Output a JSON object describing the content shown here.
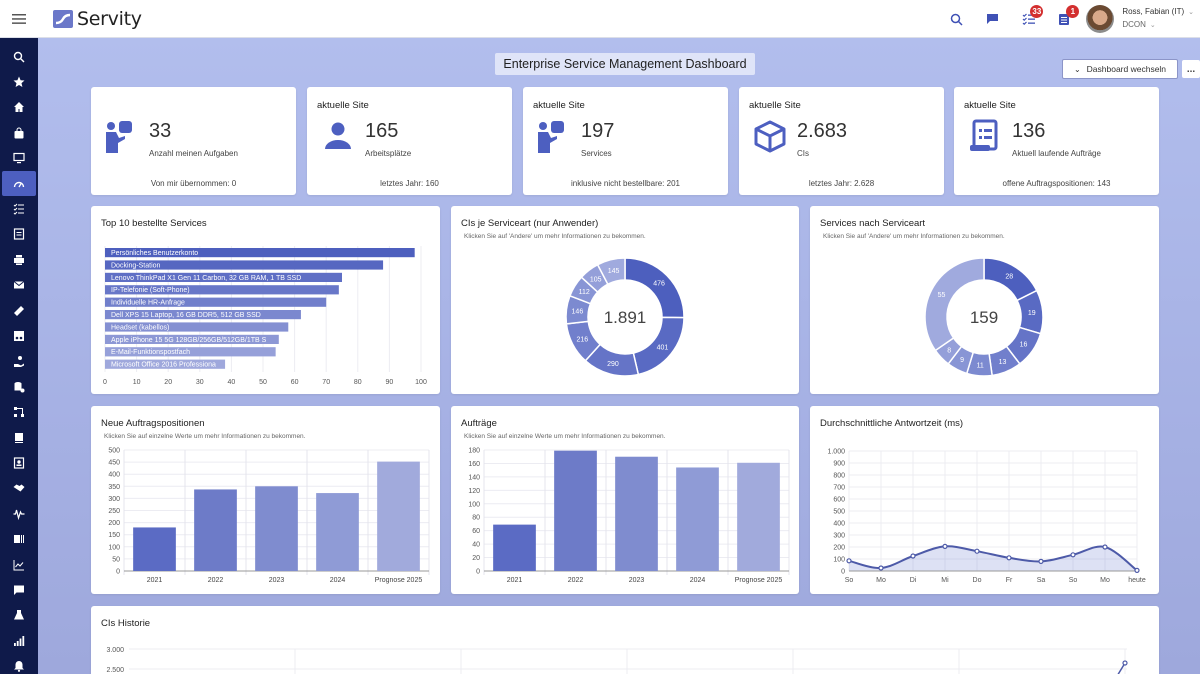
{
  "app": {
    "name": "Servity",
    "menu_icon": "hamburger-icon"
  },
  "topbar": {
    "icons": [
      {
        "name": "search-icon"
      },
      {
        "name": "chat-icon"
      },
      {
        "name": "tasks-icon",
        "badge": "33"
      },
      {
        "name": "orders-icon",
        "badge": "1"
      }
    ],
    "user": {
      "name": "Ross, Fabian (IT)",
      "org": "DCON"
    }
  },
  "sidebar": {
    "items": [
      {
        "name": "search",
        "icon": "search-icon"
      },
      {
        "name": "favorites",
        "icon": "star-icon"
      },
      {
        "name": "home",
        "icon": "home-icon"
      },
      {
        "name": "shop",
        "icon": "shopping-bag-icon"
      },
      {
        "name": "monitor",
        "icon": "monitor-icon"
      },
      {
        "name": "dashboard",
        "icon": "gauge-icon",
        "active": true
      },
      {
        "name": "tasks",
        "icon": "checklist-icon"
      },
      {
        "name": "orders",
        "icon": "list-document-icon"
      },
      {
        "name": "printer",
        "icon": "printer-icon"
      },
      {
        "name": "mail",
        "icon": "mail-icon"
      },
      {
        "name": "tickets",
        "icon": "ticket-icon"
      },
      {
        "name": "assets",
        "icon": "asset-card-icon"
      },
      {
        "name": "support",
        "icon": "hand-support-icon"
      },
      {
        "name": "database",
        "icon": "database-icon"
      },
      {
        "name": "workflow",
        "icon": "workflow-icon"
      },
      {
        "name": "catalog",
        "icon": "book-icon"
      },
      {
        "name": "contacts",
        "icon": "contact-icon"
      },
      {
        "name": "contracts",
        "icon": "handshake-icon"
      },
      {
        "name": "monitoring",
        "icon": "pulse-icon"
      },
      {
        "name": "inventory",
        "icon": "barcode-icon"
      },
      {
        "name": "reports",
        "icon": "line-chart-icon"
      },
      {
        "name": "messages",
        "icon": "message-icon"
      },
      {
        "name": "lab",
        "icon": "flask-icon"
      },
      {
        "name": "statistics",
        "icon": "signal-icon"
      },
      {
        "name": "notifications",
        "icon": "bell-icon"
      }
    ]
  },
  "header": {
    "title": "Enterprise Service Management Dashboard",
    "switch_label": "Dashboard wechseln",
    "more_label": "..."
  },
  "kpis": [
    {
      "site": "",
      "value": "33",
      "label": "Anzahl meinen Aufgaben",
      "footer": "Von mir übernommen: 0",
      "icon": "person-presenting-icon"
    },
    {
      "site": "aktuelle Site",
      "value": "165",
      "label": "Arbeitsplätze",
      "footer": "letztes Jahr: 160",
      "icon": "person-icon"
    },
    {
      "site": "aktuelle Site",
      "value": "197",
      "label": "Services",
      "footer": "inklusive nicht bestellbare: 201",
      "icon": "person-presenting-icon"
    },
    {
      "site": "aktuelle Site",
      "value": "2.683",
      "label": "CIs",
      "footer": "letztes Jahr: 2.628",
      "icon": "cube-icon"
    },
    {
      "site": "aktuelle Site",
      "value": "136",
      "label": "Aktuell laufende Aufträge",
      "footer": "offene Auftragspositionen: 143",
      "icon": "order-list-icon"
    }
  ],
  "colors": {
    "accent": "#4d5fc0",
    "sidebar": "#0f1a4a",
    "badge": "#d32f2f"
  },
  "chart_data": [
    {
      "id": "top10",
      "type": "bar",
      "orientation": "horizontal",
      "title": "Top 10 bestellte Services",
      "categories": [
        "Persönliches Benutzerkonto",
        "Docking-Station",
        "Lenovo ThinkPad X1 Gen 11 Carbon, 32 GB RAM, 1 TB SSD",
        "IP-Telefonie (Soft-Phone)",
        "Individuelle HR-Anfrage",
        "Dell XPS 15 Laptop, 16 GB DDR5, 512 GB SSD",
        "Headset (kabellos)",
        "Apple iPhone 15 5G 128GB/256GB/512GB/1TB S",
        "E-Mail-Funktionspostfach",
        "Microsoft Office 2016 Professiona"
      ],
      "values": [
        98,
        88,
        75,
        74,
        70,
        62,
        58,
        55,
        54,
        38
      ],
      "xlim": [
        0,
        100
      ],
      "xticks": [
        "0",
        "10",
        "20",
        "30",
        "40",
        "50",
        "60",
        "70",
        "80",
        "90",
        "100"
      ],
      "grid": true
    },
    {
      "id": "cis_donut",
      "type": "pie",
      "title": "CIs je Serviceart (nur Anwender)",
      "subtitle": "Klicken Sie auf 'Andere' um mehr Informationen zu bekommen.",
      "center_label": "1.891",
      "values": [
        476,
        401,
        290,
        216,
        146,
        112,
        105,
        145
      ]
    },
    {
      "id": "services_donut",
      "type": "pie",
      "title": "Services nach Serviceart",
      "subtitle": "Klicken Sie auf 'Andere' um mehr Informationen zu bekommen.",
      "center_label": "159",
      "values": [
        28,
        19,
        16,
        13,
        11,
        9,
        8,
        55
      ]
    },
    {
      "id": "neue_auftragspositionen",
      "type": "bar",
      "title": "Neue Auftragspositionen",
      "subtitle": "Klicken Sie auf einzelne Werte um mehr Informationen zu bekommen.",
      "categories": [
        "2021",
        "2022",
        "2023",
        "2024",
        "Prognose 2025"
      ],
      "values": [
        180,
        337,
        350,
        322,
        452
      ],
      "ylim": [
        0,
        500
      ],
      "yticks": [
        "0",
        "50",
        "100",
        "150",
        "200",
        "250",
        "300",
        "350",
        "400",
        "450",
        "500"
      ],
      "grid": true
    },
    {
      "id": "auftraege",
      "type": "bar",
      "title": "Aufträge",
      "subtitle": "Klicken Sie auf einzelne Werte um mehr Informationen zu bekommen.",
      "categories": [
        "2021",
        "2022",
        "2023",
        "2024",
        "Prognose 2025"
      ],
      "values": [
        69,
        179,
        170,
        154,
        161
      ],
      "ylim": [
        0,
        180
      ],
      "yticks": [
        "0",
        "20",
        "40",
        "60",
        "80",
        "100",
        "120",
        "140",
        "160",
        "180"
      ],
      "grid": true
    },
    {
      "id": "antwortzeit",
      "type": "area",
      "title": "Durchschnittliche Antwortzeit (ms)",
      "categories": [
        "So",
        "Mo",
        "Di",
        "Mi",
        "Do",
        "Fr",
        "Sa",
        "So",
        "Mo",
        "heute"
      ],
      "values": [
        85,
        25,
        125,
        205,
        165,
        110,
        80,
        135,
        200,
        5
      ],
      "ylim": [
        0,
        1000
      ],
      "yticks": [
        "0",
        "100",
        "200",
        "300",
        "400",
        "500",
        "600",
        "700",
        "800",
        "900",
        "1.000"
      ],
      "grid": true
    },
    {
      "id": "cis_historie",
      "type": "line",
      "title": "CIs Historie",
      "yticks_visible": [
        "3.000",
        "2.500"
      ],
      "values_visible": [
        2683
      ],
      "grid": true
    }
  ]
}
